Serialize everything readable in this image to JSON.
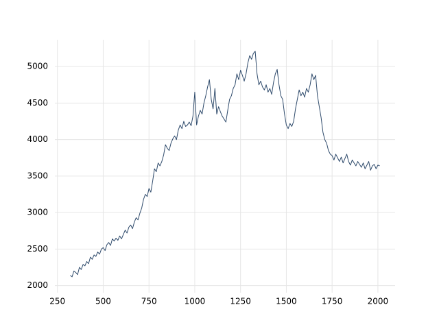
{
  "chart_data": {
    "type": "line",
    "x": [
      320,
      330,
      340,
      350,
      360,
      370,
      380,
      390,
      400,
      410,
      420,
      430,
      440,
      450,
      460,
      470,
      480,
      490,
      500,
      510,
      520,
      530,
      540,
      550,
      560,
      570,
      580,
      590,
      600,
      610,
      620,
      630,
      640,
      650,
      660,
      670,
      680,
      690,
      700,
      710,
      720,
      730,
      740,
      750,
      760,
      770,
      780,
      790,
      800,
      810,
      820,
      830,
      840,
      850,
      860,
      870,
      880,
      890,
      900,
      910,
      920,
      930,
      940,
      950,
      960,
      970,
      980,
      990,
      1000,
      1010,
      1020,
      1030,
      1040,
      1050,
      1060,
      1070,
      1080,
      1090,
      1100,
      1110,
      1120,
      1130,
      1140,
      1150,
      1160,
      1170,
      1180,
      1190,
      1200,
      1210,
      1220,
      1230,
      1240,
      1250,
      1260,
      1270,
      1280,
      1290,
      1300,
      1310,
      1320,
      1330,
      1340,
      1350,
      1360,
      1370,
      1380,
      1390,
      1400,
      1410,
      1420,
      1430,
      1440,
      1450,
      1460,
      1470,
      1480,
      1490,
      1500,
      1510,
      1520,
      1530,
      1540,
      1550,
      1560,
      1570,
      1580,
      1590,
      1600,
      1610,
      1620,
      1630,
      1640,
      1650,
      1660,
      1670,
      1680,
      1690,
      1700,
      1710,
      1720,
      1730,
      1740,
      1750,
      1760,
      1770,
      1780,
      1790,
      1800,
      1810,
      1820,
      1830,
      1840,
      1850,
      1860,
      1870,
      1880,
      1890,
      1900,
      1910,
      1920,
      1930,
      1940,
      1950,
      1960,
      1970,
      1980,
      1990,
      2000,
      2010
    ],
    "series": [
      {
        "color": "#2e4a6b",
        "values": [
          2140,
          2120,
          2200,
          2180,
          2150,
          2250,
          2220,
          2290,
          2270,
          2330,
          2300,
          2390,
          2360,
          2420,
          2400,
          2460,
          2430,
          2500,
          2520,
          2480,
          2560,
          2590,
          2550,
          2640,
          2610,
          2650,
          2620,
          2680,
          2640,
          2700,
          2760,
          2720,
          2800,
          2830,
          2780,
          2870,
          2930,
          2900,
          2990,
          3060,
          3180,
          3250,
          3220,
          3330,
          3280,
          3430,
          3600,
          3560,
          3680,
          3640,
          3700,
          3790,
          3930,
          3880,
          3850,
          3950,
          4010,
          4050,
          4000,
          4130,
          4200,
          4150,
          4250,
          4180,
          4200,
          4240,
          4190,
          4320,
          4650,
          4200,
          4320,
          4400,
          4350,
          4500,
          4600,
          4720,
          4820,
          4550,
          4420,
          4700,
          4350,
          4450,
          4380,
          4320,
          4280,
          4240,
          4400,
          4550,
          4600,
          4700,
          4750,
          4900,
          4820,
          4950,
          4880,
          4800,
          4900,
          5050,
          5150,
          5100,
          5180,
          5210,
          4900,
          4750,
          4800,
          4720,
          4680,
          4750,
          4650,
          4700,
          4620,
          4780,
          4900,
          4960,
          4750,
          4600,
          4550,
          4350,
          4200,
          4150,
          4220,
          4180,
          4250,
          4420,
          4550,
          4680,
          4600,
          4650,
          4580,
          4700,
          4650,
          4750,
          4900,
          4820,
          4880,
          4600,
          4450,
          4300,
          4100,
          4000,
          3950,
          3850,
          3800,
          3780,
          3720,
          3800,
          3750,
          3700,
          3760,
          3680,
          3740,
          3800,
          3700,
          3650,
          3720,
          3680,
          3640,
          3700,
          3660,
          3620,
          3680,
          3600,
          3650,
          3700,
          3580,
          3640,
          3660,
          3600,
          3650,
          3640
        ]
      }
    ],
    "xlim": [
      236,
      2094
    ],
    "ylim": [
      1903,
      5367
    ],
    "xticks": [
      250,
      500,
      750,
      1000,
      1250,
      1500,
      1750,
      2000
    ],
    "yticks": [
      2000,
      2500,
      3000,
      3500,
      4000,
      4500,
      5000
    ],
    "grid": true
  }
}
